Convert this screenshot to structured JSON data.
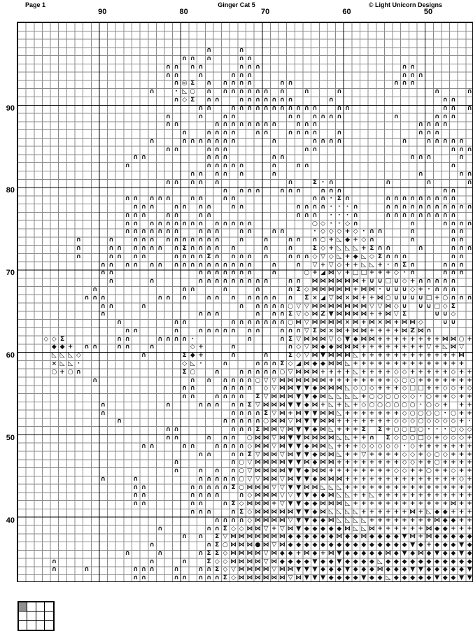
{
  "header": {
    "page_label": "Page 1",
    "title": "Ginger Cat 5",
    "copyright": "© Light Unicorn Designs"
  },
  "grid": {
    "cols": 56,
    "rows": 68,
    "first_col_number": 100,
    "first_row_number": 100,
    "col_labels": [
      {
        "text": "90",
        "col": 10
      },
      {
        "text": "80",
        "col": 20
      },
      {
        "text": "70",
        "col": 30
      },
      {
        "text": "60",
        "col": 40
      },
      {
        "text": "50",
        "col": 50
      }
    ],
    "row_labels": [
      {
        "text": "90",
        "row": 10
      },
      {
        "text": "80",
        "row": 20
      },
      {
        "text": "70",
        "row": 30
      },
      {
        "text": "60",
        "row": 40
      },
      {
        "text": "50",
        "row": 50
      },
      {
        "text": "40",
        "row": 60
      }
    ],
    "symbol_map": {
      "n": "∩",
      "u": "∪",
      "d": "◇",
      "D": "◆",
      "v": "▽",
      "V": "▼",
      "B": "⋈",
      "+": "+",
      "x": "×",
      "o": "○",
      "O": "◎",
      "*": "·",
      "s": "Σ",
      "q": "□",
      "L": "◺",
      "T": "◢",
      "Z": "Z",
      "F": "●"
    },
    "pattern_rows": [
      "........................................................",
      "........................................................",
      "........................................................",
      ".......................n...n............................",
      "....................nn.n...nn...........................",
      "..................nn.nn....nnn.................nn.......",
      "..................nn..n...nnn..................nnn......",
      "...................nOs.n.nnnn...nn............nnn.......",
      "................n..*Lo.n.nnnnnn.n..n...n...........n...n",
      "...................nds.nn..nnnnnnn....n.............nn..",
      "......................nn..nnnnnnnnnnn..nn...........nn.n",
      "..................n...n..nn......nn.nnnn......n....nnn..",
      "..................nn....nnnnnnnn..nnn............nnnn...",
      "....................n..nnnn..nn..nnnn..n.........nnn....",
      "................n...nnnnnnn....n....nnnn.......n..nnnnn.",
      "..................nn...nnn.........nn................nnn",
      "..............nn.......nnn.....nn...............nnn...n.",
      ".............n.........nnnnn...n..nn.................n..",
      ".....................nn.nn.n...n.................n....nn",
      "..................nn.nn.n........n..s*n......n....n....n",
      ".........................n.nnn..nnn..nnn............nn..",
      ".............nn.nnn..nn..nn.........nn*sn....nnnnnnnnn..",
      "..............nnn..nn.nn..nn......nnnn***n...nnnnnnnnnnn",
      ".............nnn..nn..nn..........nnn.***n...nnnnnnnnn..",
      ".............nn.nnnnnnn.nnnnn.......od**dn......n...nnnn",
      ".............nnnnnnn..nnn..nn..nn...*ddd+d*nn...n....nn.",
      ".......n...n..nnn.nnnnnnn..n..n..nn.no+LD+dn....n....nn.",
      ".......n...nn.nnnn.nsnnnn.n...n..n..sd+LLL+snn...n...nnn",
      ".......n...nn.nn...nnnnsn.nnn.n..nnndvdL+DLdsnnn.....nn.",
      "..........nn.nn.nn.nnnnnnnnnn..n..n.v+vd++LL+*nsn...nnn.",
      "..........nn..........nnnnnnn..n...o+TBv+qq+++d*n...nnn.",
      "...........n....n.....nnnnnnnnn..nn.BBBBBB+uuqud+nnnnn..",
      ".........n..........nn...n...n...nsdBBBBB+BB*uuud+*nnn..",
      "........nnn......nn.n..nn.n.nnnn.n.sxTvBxB++BouuuuQ+onnn",
      "..........nn...n...........n.nnnnovvBBBBBBBvvBdu.uuqds..",
      "..........n...........nnn....n.nnsvdBZVBBBB++Bvs...uud..",
      "............n......nn.....nnnnnnnoBvBBBBxB+BxB+BBd..uu..",
      ".............nn....n..nnnnn.nn..nnnvsBxB+BB++++BZBn.....",
      "...dds......nn...nnnn*......n...nsvBBBvdVDBB++++++++BBo+",
      "....DD+.nn..nn..n....d+...n......ndvBDDBBB++++++++v+LBv.",
      "....LLLd.......n....sD+...n...n..sdvBVBBBL++++++++++++B.",
      "....xLL*............dL*..n...nnnsdTBDDBBL++++++++++++++.",
      "....o+on............so..n..nnnnnovBBB++++L++++dd+++++d++",
      ".........n...........n.n.nnnnovvBBBBBB++++++++doo+++++++",
      "....................nn...nnnn.dvBBVVDBBBLdod+++dqq++dd+d",
      "....................nn..nnnn.svBBBVVDBLLLL+oooodd*o++d++",
      "..........n.......n...nnn.nnsvBBBVVDB+L+L+doooooo*od+,++",
      "..........n...............nnnnsvB+BVVBBL+++++++doooo*o++",
      "............n............nnnnnoBBvBVVBB+++++++dddodddd+*",
      "..................nn......nnnsBBvBVVDBL+++s.s+ooqo***odd",
      "..................nn...n.nn.oBBvBVVBBBBLL++n.sdooqd+ddd+",
      "...............nn...nn..nnnndBBvBVVDBBL+++ddddd*d+++++++",
      "......................nn..nnsvBBvBVVDBBL++v++++dd+dod+++",
      "...................n......novBBBBVVBDBB++++++++dd++o++++",
      "...................n..n.n.novBBBBVVDBB++++++++dd++o++d++",
      "..........n...n.......nnnnnovvBBvBVVDBBB++++++++++++++d+",
      "..............nn.....nnnnnsoBBBvvVVBBLLL++++++++++++++++",
      "..............nn.....nnnn..ndBBBvvVVDDBLL++L++++++++++++",
      "..............nn.....nn..nsdBBB+vVVDDBBBL++++++++++++B++",
      ".....................nnn..nsdBBBBBVVDBLLLL++++++B+LDD+++",
      "........................nnnndBBBBvVVDDBLLLL++++++++BDD++",
      ".................n.....nnsddBBv+vBVDDDDDBLLB++++++BDD+++",
      "....................n.n.svBBBBBBBDDDDDDBDDBDDDDVB+BDDDDD",
      "................n......nsoBBBFBvBDDDDDDDDDDDDDDDVD+DDDVD",
      ".............n...n....nssdBBBBvBDD+BD+BVDDDDDBDVDBDVDDVD",
      "....n...........n...n..sddBBBBvBDDDDVDDVDDDDLDDDDDDDDDDD",
      "....n...n.....nnn..n..nnsdvBBBBvBBVVVDDDVDDDBDDDVVDDDDDV",
      "..............nn...nn.nnnsdBBBBBBvBVVVDDDDVDDLDDDDDVDDVV"
    ]
  },
  "page_map": {
    "cols": 4,
    "rows": 3,
    "active_index": 0
  },
  "colors": {
    "symbol": "#111111",
    "grid_minor": "#8a8a8a",
    "grid_major": "#000000",
    "page_map_active": "#909090"
  }
}
